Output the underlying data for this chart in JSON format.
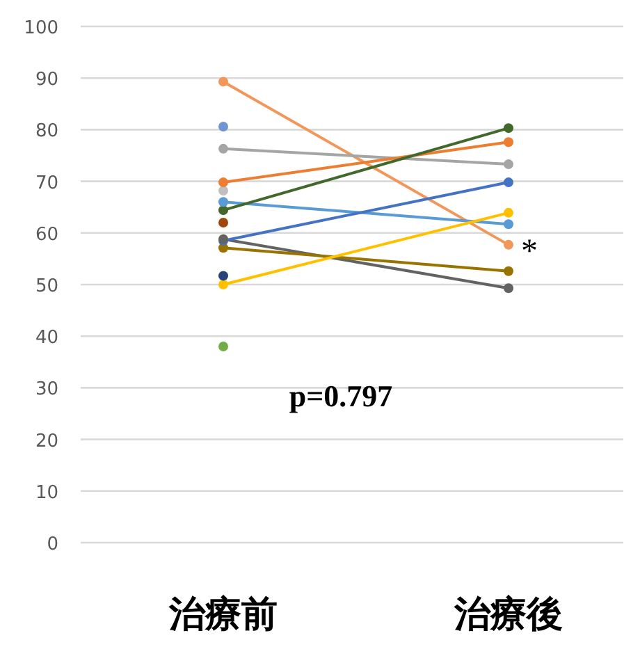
{
  "chart_data": {
    "type": "line",
    "categories": [
      "治療前",
      "治療後"
    ],
    "ylim": [
      0,
      100
    ],
    "yticks": [
      0,
      10,
      20,
      30,
      40,
      50,
      60,
      70,
      80,
      90,
      100
    ],
    "grid": "y",
    "marker": "circle",
    "line_style": "solid",
    "series": [
      {
        "color": "#F1975A",
        "values": [
          89.3,
          57.7
        ]
      },
      {
        "color": "#6F95D3",
        "values": [
          80.6,
          null
        ]
      },
      {
        "color": "#A5A5A5",
        "values": [
          76.3,
          73.3
        ]
      },
      {
        "color": "#ED7D31",
        "values": [
          69.8,
          77.6
        ]
      },
      {
        "color": "#BFBFBF",
        "values": [
          68.2,
          null
        ]
      },
      {
        "color": "#5B9BD5",
        "values": [
          66.0,
          61.7
        ]
      },
      {
        "color": "#43682B",
        "values": [
          64.4,
          80.3
        ]
      },
      {
        "color": "#9E480E",
        "values": [
          62.0,
          null
        ]
      },
      {
        "color": "#636363",
        "values": [
          58.8,
          49.3
        ]
      },
      {
        "color": "#4472C4",
        "values": [
          58.5,
          69.8
        ]
      },
      {
        "color": "#997300",
        "values": [
          57.1,
          52.6
        ]
      },
      {
        "color": "#264478",
        "values": [
          51.7,
          null
        ]
      },
      {
        "color": "#FFC000",
        "values": [
          50.0,
          63.9
        ]
      },
      {
        "color": "#70AD47",
        "values": [
          38.0,
          null
        ]
      }
    ],
    "annotations": [
      "p=0.797",
      {
        "text": "*",
        "x": "治療後",
        "y": 57.7
      }
    ]
  }
}
